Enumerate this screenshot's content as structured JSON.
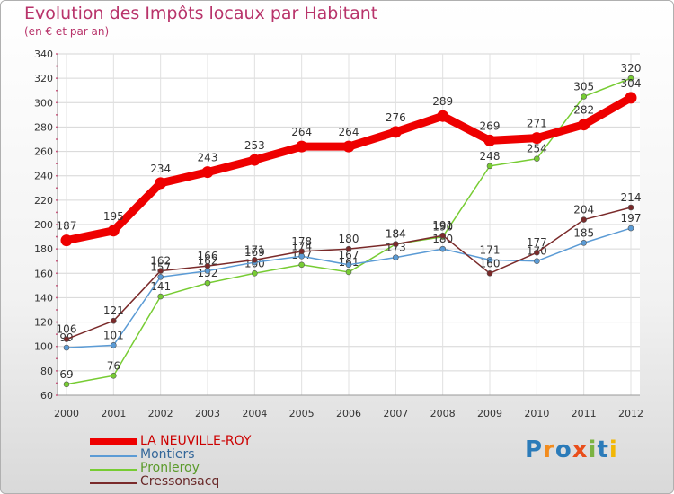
{
  "chart_data": {
    "type": "line",
    "title": "Evolution des Impôts locaux par Habitant",
    "subtitle": "(en € et par an)",
    "xlabel": "",
    "ylabel": "",
    "ylim": [
      60,
      340
    ],
    "yticks": [
      60,
      80,
      100,
      120,
      140,
      160,
      180,
      200,
      220,
      240,
      260,
      280,
      300,
      320,
      340
    ],
    "categories": [
      "2000",
      "2001",
      "2002",
      "2003",
      "2004",
      "2005",
      "2006",
      "2007",
      "2008",
      "2009",
      "2010",
      "2011",
      "2012"
    ],
    "grid": true,
    "series": [
      {
        "name": "LA NEUVILLE-ROY",
        "color": "#ee0000",
        "values": [
          187,
          195,
          234,
          243,
          253,
          264,
          264,
          276,
          289,
          269,
          271,
          282,
          304
        ]
      },
      {
        "name": "Montiers",
        "color": "#5b9bd5",
        "values": [
          99,
          101,
          157,
          162,
          169,
          174,
          167,
          173,
          180,
          171,
          170,
          185,
          197
        ]
      },
      {
        "name": "Pronleroy",
        "color": "#77cc33",
        "values": [
          69,
          76,
          141,
          152,
          160,
          167,
          161,
          184,
          190,
          248,
          254,
          305,
          320
        ]
      },
      {
        "name": "Cressonsacq",
        "color": "#7a2a2a",
        "values": [
          106,
          121,
          162,
          166,
          171,
          178,
          180,
          184,
          191,
          160,
          177,
          204,
          214
        ]
      }
    ]
  },
  "logo": {
    "text": "Proxiti"
  }
}
